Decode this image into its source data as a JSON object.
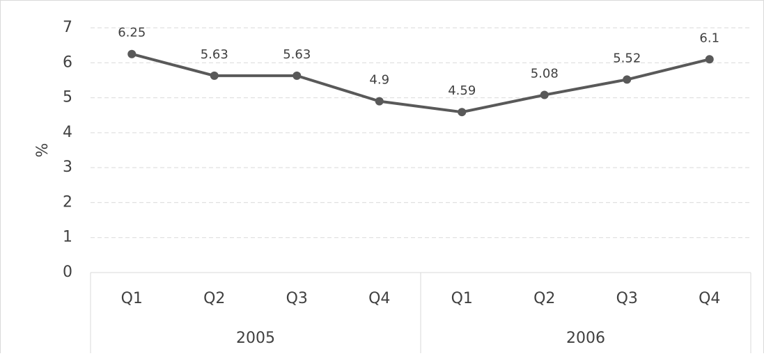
{
  "chart_data": {
    "type": "line",
    "y_label": "%",
    "groups": [
      {
        "name": "2005",
        "categories": [
          "Q1",
          "Q2",
          "Q3",
          "Q4"
        ]
      },
      {
        "name": "2006",
        "categories": [
          "Q1",
          "Q2",
          "Q3",
          "Q4"
        ]
      }
    ],
    "series": [
      {
        "color": "#595959",
        "values": [
          6.25,
          5.63,
          5.63,
          4.9,
          4.59,
          5.08,
          5.52,
          6.1
        ]
      }
    ],
    "ylim": [
      0,
      7
    ],
    "yticks": [
      0,
      1,
      2,
      3,
      4,
      5,
      6,
      7
    ],
    "grid": true
  }
}
